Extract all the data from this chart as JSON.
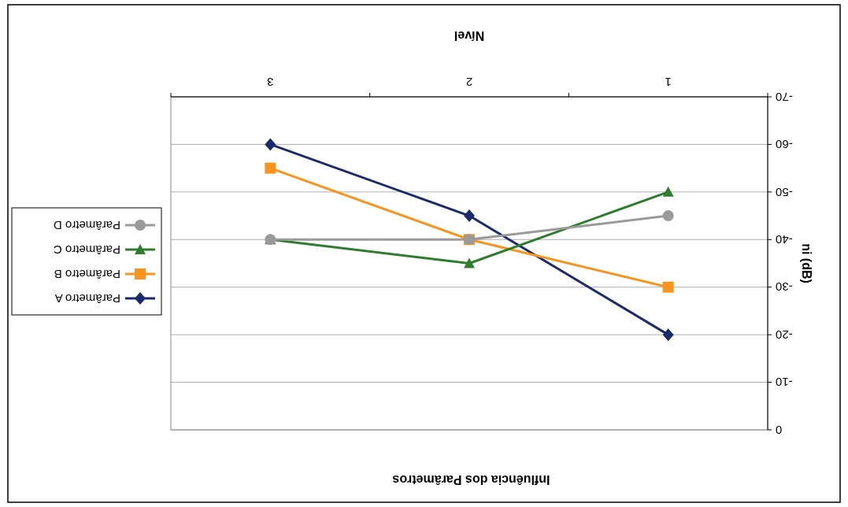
{
  "chart_data": {
    "type": "line",
    "title": "Influência dos Parâmetros",
    "xlabel": "Nível",
    "ylabel": "ni (dB)",
    "categories": [
      "3",
      "2",
      "1"
    ],
    "series": [
      {
        "name": "Parâmetro A",
        "color": "#1b2a6b",
        "values": [
          -60,
          -45,
          -20
        ],
        "marker": "diamond"
      },
      {
        "name": "Parâmetro B",
        "color": "#f7941d",
        "values": [
          -55,
          -40,
          -30
        ],
        "marker": "square"
      },
      {
        "name": "Parâmetro C",
        "color": "#2e7d2e",
        "values": [
          -40,
          -35,
          -50
        ],
        "marker": "triangle"
      },
      {
        "name": "Parâmetro D",
        "color": "#9a9a9a",
        "values": [
          -40,
          -40,
          -45
        ],
        "marker": "circle"
      }
    ],
    "ylim": [
      0,
      -70
    ],
    "yticks": [
      0,
      -10,
      -20,
      -30,
      -40,
      -50,
      -60,
      -70
    ],
    "grid": "y",
    "legend": "left",
    "line_style": "solid"
  }
}
